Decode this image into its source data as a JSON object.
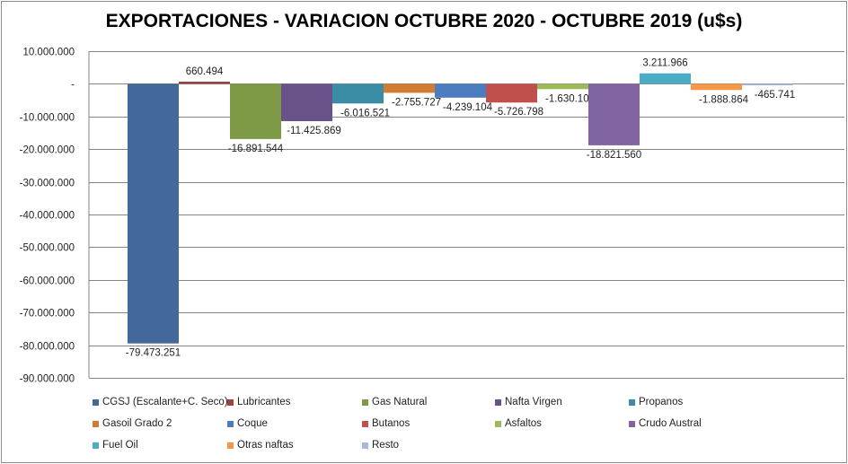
{
  "chart_data": {
    "type": "bar",
    "title": "EXPORTACIONES - VARIACION OCTUBRE 2020 - OCTUBRE 2019 (u$s)",
    "xlabel": "",
    "ylabel": "",
    "ylim": [
      -90000000,
      10000000
    ],
    "yticks": [
      10000000,
      0,
      -10000000,
      -20000000,
      -30000000,
      -40000000,
      -50000000,
      -60000000,
      -70000000,
      -80000000,
      -90000000
    ],
    "ytick_labels": [
      "10.000.000",
      "-",
      "-10.000.000",
      "-20.000.000",
      "-30.000.000",
      "-40.000.000",
      "-50.000.000",
      "-60.000.000",
      "-70.000.000",
      "-80.000.000",
      "-90.000.000"
    ],
    "grid": true,
    "legend_position": "bottom",
    "series": [
      {
        "name": "CGSJ (Escalante+C. Seco)",
        "value": -79473251,
        "label": "-79.473.251",
        "color": "#43699B"
      },
      {
        "name": "Lubricantes",
        "value": 660494,
        "label": "660.494",
        "color": "#A0413E"
      },
      {
        "name": "Gas Natural",
        "value": -16891544,
        "label": "-16.891.544",
        "color": "#7E9A47"
      },
      {
        "name": "Nafta Virgen",
        "value": -11425869,
        "label": "-11.425.869",
        "color": "#69518A"
      },
      {
        "name": "Propanos",
        "value": -6016521,
        "label": "-6.016.521",
        "color": "#3A8DA4"
      },
      {
        "name": "Gasoil Grado 2",
        "value": -2755727,
        "label": "-2.755.727",
        "color": "#D07C35"
      },
      {
        "name": "Coque",
        "value": -4239104,
        "label": "-4.239.104",
        "color": "#4C7EBF"
      },
      {
        "name": "Butanos",
        "value": -5726798,
        "label": "-5.726.798",
        "color": "#C0504D"
      },
      {
        "name": "Asfaltos",
        "value": -1630101,
        "label": "-1.630.101",
        "color": "#9BBB59"
      },
      {
        "name": "Crudo Austral",
        "value": -18821560,
        "label": "-18.821.560",
        "color": "#8064A2"
      },
      {
        "name": "Fuel Oil",
        "value": 3211966,
        "label": "3.211.966",
        "color": "#4BACC6"
      },
      {
        "name": "Otras naftas",
        "value": -1888864,
        "label": "-1.888.864",
        "color": "#F79646"
      },
      {
        "name": "Resto",
        "value": -465741,
        "label": "-465.741",
        "color": "#A6B9DA"
      }
    ]
  }
}
